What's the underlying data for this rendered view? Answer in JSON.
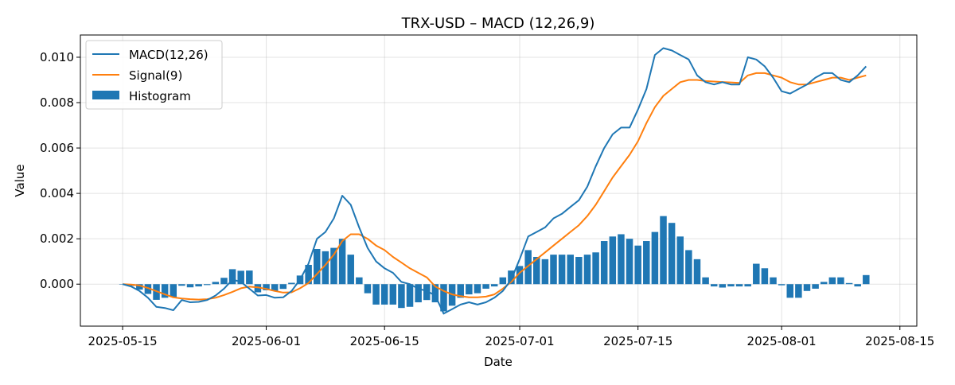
{
  "chart_data": {
    "type": "line",
    "title": "TRX-USD – MACD (12,26,9)",
    "xlabel": "Date",
    "ylabel": "Value",
    "x_start_date": "2025-05-15",
    "x_end_date": "2025-08-12",
    "x_ticks": [
      "2025-05-15",
      "2025-06-01",
      "2025-06-15",
      "2025-07-01",
      "2025-07-15",
      "2025-08-01",
      "2025-08-15"
    ],
    "x_lim": [
      "2025-05-10",
      "2025-08-17"
    ],
    "y_ticks": [
      "0.000",
      "0.002",
      "0.004",
      "0.006",
      "0.008",
      "0.010"
    ],
    "ylim": [
      -0.00185,
      0.01098
    ],
    "grid": true,
    "legend_position": "top-left",
    "colors": {
      "macd": "#1f77b4",
      "signal": "#ff7f0e",
      "histogram": "#1f77b4"
    },
    "series": [
      {
        "name": "MACD(12,26)",
        "kind": "line",
        "values": [
          0.0,
          -0.0001,
          -0.0003,
          -0.0006,
          -0.001,
          -0.00105,
          -0.00115,
          -0.0007,
          -0.0008,
          -0.00078,
          -0.0007,
          -0.0005,
          -0.0002,
          0.0002,
          0.0001,
          -0.0002,
          -0.0005,
          -0.00048,
          -0.0006,
          -0.00058,
          -0.0003,
          0.0002,
          0.0009,
          0.002,
          0.0023,
          0.0029,
          0.0039,
          0.0035,
          0.0025,
          0.0016,
          0.001,
          0.0007,
          0.0005,
          0.0001,
          0.0,
          -0.0002,
          -0.0003,
          -0.0005,
          -0.0013,
          -0.0011,
          -0.0009,
          -0.0008,
          -0.0009,
          -0.0008,
          -0.0006,
          -0.0003,
          0.0002,
          0.0011,
          0.0021,
          0.0023,
          0.0025,
          0.0029,
          0.0031,
          0.0034,
          0.0037,
          0.0043,
          0.0052,
          0.006,
          0.0066,
          0.0069,
          0.0069,
          0.0077,
          0.0086,
          0.0101,
          0.0104,
          0.0103,
          0.0101,
          0.0099,
          0.0092,
          0.0089,
          0.0088,
          0.0089,
          0.0088,
          0.0088,
          0.01,
          0.0099,
          0.0096,
          0.0091,
          0.0085,
          0.0084,
          0.0086,
          0.0088,
          0.0091,
          0.0093,
          0.0093,
          0.009,
          0.0089,
          0.0092,
          0.0096
        ]
      },
      {
        "name": "Signal(9)",
        "kind": "line",
        "values": [
          0.0,
          -2e-05,
          -6e-05,
          -0.00017,
          -0.00031,
          -0.00045,
          -0.00058,
          -0.00063,
          -0.00066,
          -0.00068,
          -0.00066,
          -0.0006,
          -0.00048,
          -0.00034,
          -0.00018,
          -0.00011,
          -0.00014,
          -0.00021,
          -0.0003,
          -0.00037,
          -0.00036,
          -0.00018,
          5e-05,
          0.00045,
          0.00085,
          0.0013,
          0.0019,
          0.0022,
          0.0022,
          0.002,
          0.0017,
          0.0015,
          0.0012,
          0.00095,
          0.0007,
          0.0005,
          0.0003,
          -0.0001,
          -0.0003,
          -0.00045,
          -0.00053,
          -0.00058,
          -0.00058,
          -0.00055,
          -0.00045,
          -0.0002,
          0.0001,
          0.0005,
          0.0008,
          0.0011,
          0.0014,
          0.0017,
          0.002,
          0.0023,
          0.0026,
          0.003,
          0.0035,
          0.0041,
          0.0047,
          0.0052,
          0.0057,
          0.0063,
          0.0071,
          0.0078,
          0.0083,
          0.0086,
          0.0089,
          0.009,
          0.009,
          0.00895,
          0.00893,
          0.00891,
          0.00889,
          0.00887,
          0.0092,
          0.0093,
          0.0093,
          0.0092,
          0.0091,
          0.0089,
          0.0088,
          0.0088,
          0.0089,
          0.009,
          0.0091,
          0.0091,
          0.009,
          0.0091,
          0.0092
        ]
      },
      {
        "name": "Histogram",
        "kind": "bar",
        "values": [
          0.0,
          -8e-05,
          -0.00024,
          -0.00043,
          -0.00069,
          -0.0006,
          -0.00057,
          -7e-05,
          -0.00014,
          -0.0001,
          -4e-05,
          0.0001,
          0.00028,
          0.00066,
          0.00059,
          0.0006,
          -0.00036,
          -0.00027,
          -0.0003,
          -0.00021,
          6e-05,
          0.00038,
          0.00085,
          0.00155,
          0.00145,
          0.0016,
          0.002,
          0.0013,
          0.0003,
          -0.0004,
          -0.0009,
          -0.0009,
          -0.0009,
          -0.00105,
          -0.001,
          -0.0008,
          -0.0007,
          -0.0008,
          -0.0012,
          -0.00095,
          -0.0006,
          -0.00045,
          -0.0004,
          -0.0002,
          -0.0001,
          0.0003,
          0.0006,
          0.0008,
          0.0015,
          0.0012,
          0.0011,
          0.0013,
          0.0013,
          0.0013,
          0.0012,
          0.0013,
          0.0014,
          0.0019,
          0.0021,
          0.0022,
          0.002,
          0.0017,
          0.0019,
          0.0023,
          0.003,
          0.0027,
          0.0021,
          0.0015,
          0.0011,
          0.0003,
          -0.0001,
          -0.00015,
          -0.0001,
          -0.0001,
          -0.0001,
          0.0009,
          0.0007,
          0.0003,
          -5e-05,
          -0.0006,
          -0.0006,
          -0.0003,
          -0.0002,
          0.0001,
          0.0003,
          0.0003,
          5e-05,
          -0.0001,
          0.0004
        ]
      }
    ]
  }
}
